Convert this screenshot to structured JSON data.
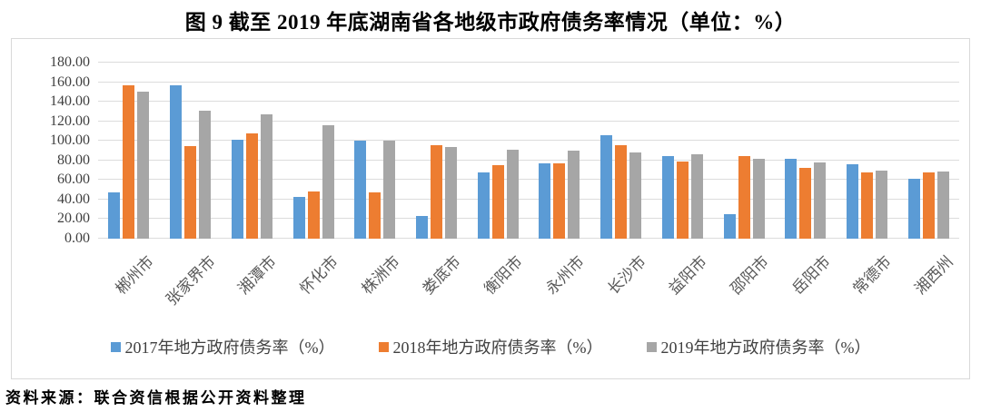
{
  "title": "图 9  截至 2019 年底湖南省各地级市政府债务率情况（单位：%）",
  "source_note": "资料来源：联合资信根据公开资料整理",
  "colors": {
    "series_2017": "#5b9bd5",
    "series_2018": "#ed7d31",
    "series_2019": "#a6a6a6",
    "gridline": "#dcdcdc",
    "frame_border": "#d9d9d9",
    "axis_text": "#404040",
    "category_text": "#595959"
  },
  "chart_data": {
    "type": "bar",
    "title": "图 9  截至 2019 年底湖南省各地级市政府债务率情况（单位：%）",
    "categories": [
      "郴州市",
      "张家界市",
      "湘潭市",
      "怀化市",
      "株洲市",
      "娄底市",
      "衡阳市",
      "永州市",
      "长沙市",
      "益阳市",
      "邵阳市",
      "岳阳市",
      "常德市",
      "湘西州"
    ],
    "series": [
      {
        "name": "2017年地方政府债务率（%）",
        "color": "#5b9bd5",
        "values": [
          47,
          157,
          101,
          43,
          100,
          23,
          68,
          77,
          106,
          84,
          25,
          82,
          76,
          61
        ]
      },
      {
        "name": "2018年地方政府债务率（%）",
        "color": "#ed7d31",
        "values": [
          157,
          95,
          108,
          48,
          47,
          96,
          75,
          77,
          96,
          79,
          84,
          72,
          68,
          68
        ]
      },
      {
        "name": "2019年地方政府债务率（%）",
        "color": "#a6a6a6",
        "values": [
          150,
          131,
          127,
          116,
          100,
          94,
          91,
          90,
          88,
          86,
          82,
          78,
          70,
          69
        ]
      }
    ],
    "xlabel": "",
    "ylabel": "",
    "ylim": [
      0,
      180
    ],
    "ytick_step": 20,
    "ytick_labels": [
      "0.00",
      "20.00",
      "40.00",
      "60.00",
      "80.00",
      "100.00",
      "120.00",
      "140.00",
      "160.00",
      "180.00"
    ],
    "grid": true,
    "legend_position": "bottom"
  }
}
